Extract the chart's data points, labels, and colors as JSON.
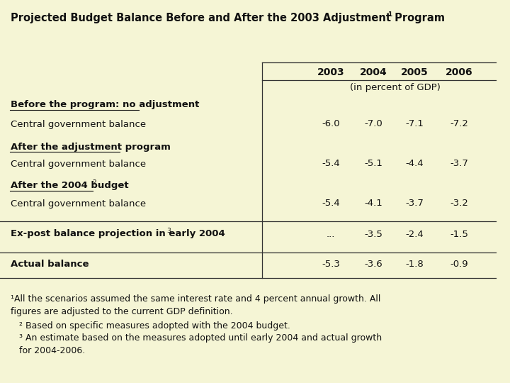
{
  "title": "Projected Budget Balance Before and After the 2003 Adjustment Program",
  "title_superscript": "1",
  "background_color": "#f5f5d5",
  "years": [
    "2003",
    "2004",
    "2005",
    "2006"
  ],
  "unit_label": "(in percent of GDP)",
  "sections": [
    {
      "header": "Before the program: no adjustment",
      "header_underline": true,
      "header_bold": true,
      "header_superscript": null,
      "subrows": [
        {
          "label": "Central government balance",
          "values": [
            "-6.0",
            "-7.0",
            "-7.1",
            "-7.2"
          ]
        }
      ]
    },
    {
      "header": "After the adjustment program",
      "header_underline": true,
      "header_bold": true,
      "header_superscript": null,
      "subrows": [
        {
          "label": "Central government balance",
          "values": [
            "-5.4",
            "-5.1",
            "-4.4",
            "-3.7"
          ]
        }
      ]
    },
    {
      "header": "After the 2004 budget",
      "header_superscript": "2",
      "header_underline": true,
      "header_bold": true,
      "subrows": [
        {
          "label": "Central government balance",
          "values": [
            "-5.4",
            "-4.1",
            "-3.7",
            "-3.2"
          ]
        }
      ]
    },
    {
      "header": "Ex-post balance projection in early 2004",
      "header_superscript": "3",
      "header_underline": false,
      "header_bold": true,
      "subrows": [
        {
          "label": null,
          "values": [
            "...",
            "-3.5",
            "-2.4",
            "-1.5"
          ]
        }
      ]
    },
    {
      "header": "Actual balance",
      "header_superscript": null,
      "header_underline": false,
      "header_bold": true,
      "subrows": [
        {
          "label": null,
          "values": [
            "-5.3",
            "-3.6",
            "-1.8",
            "-0.9"
          ]
        }
      ]
    }
  ],
  "footnote1_line1": "¹All the scenarios assumed the same interest rate and 4 percent annual growth. All",
  "footnote1_line2": "figures are adjusted to the current GDP definition.",
  "footnote2": "² Based on specific measures adopted with the 2004 budget.",
  "footnote3_line1": "³ An estimate based on the measures adopted until early 2004 and actual growth",
  "footnote3_line2": "for 2004-2006.",
  "line_color": "#333333",
  "text_color": "#111111",
  "font_size_title": 10.5,
  "font_size_years": 10,
  "font_size_unit": 9.5,
  "font_size_header": 9.5,
  "font_size_data": 9.5,
  "font_size_footnote": 9.0,
  "font_size_sup": 6.5
}
